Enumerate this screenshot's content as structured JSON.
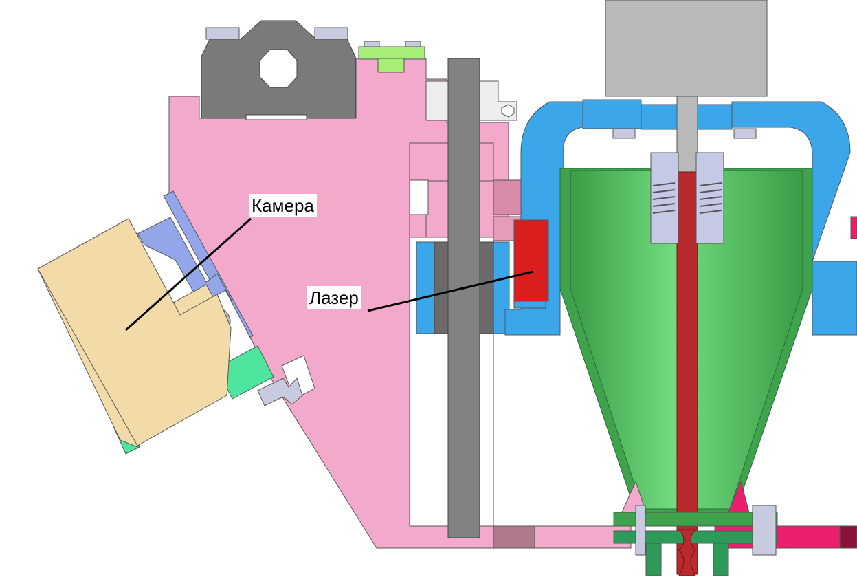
{
  "labels": {
    "camera": "Камера",
    "laser": "Лазер"
  },
  "colors": {
    "frame": "#f2a9cb",
    "frame_edge": "#555555",
    "camera_body": "#f2dba8",
    "camera_mount": "#93a6ea",
    "clamp": "#7a7a7a",
    "rail": "#828282",
    "laser_module": "#d91e1e",
    "bracket": "#3ba6ea",
    "cone": "#5cc96a",
    "cone_dark": "#3ea34c",
    "feed_tube": "#b92a2e",
    "drive_shaft": "#b9b9b9",
    "clip": "#c6c9e6",
    "spacer": "#4ee59f",
    "lime_block": "#a6ee78",
    "red_bar": "#ec1e6e",
    "plate_dark": "#b07a8c",
    "bolt": "#c8cbe0",
    "leader_line": "#000000"
  }
}
